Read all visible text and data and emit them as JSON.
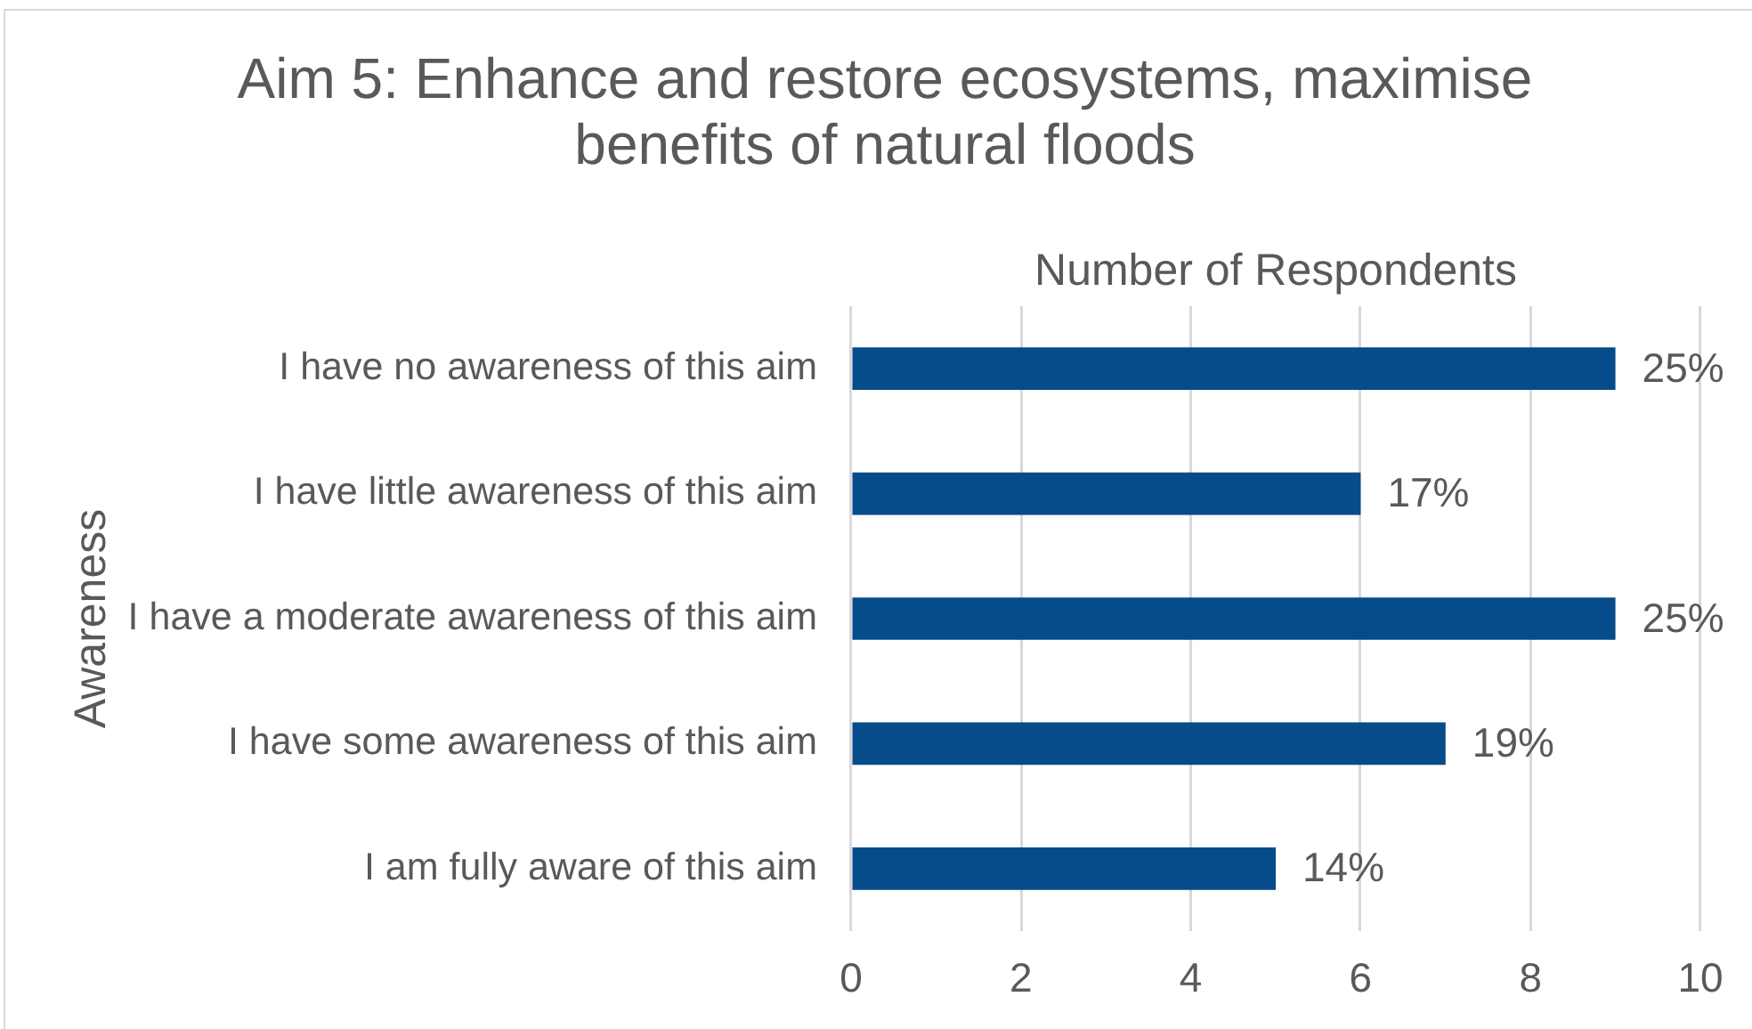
{
  "chart_data": {
    "type": "bar",
    "orientation": "horizontal",
    "title": "Aim 5: Enhance and restore ecosystems, maximise benefits of natural floods",
    "xlabel": "Number of Respondents",
    "ylabel": "Awareness",
    "categories": [
      "I have no awareness of this aim",
      "I have little awareness of this aim",
      "I have a moderate awareness of this aim",
      "I have some awareness of this aim",
      "I am fully aware of this aim"
    ],
    "values": [
      9,
      6,
      9,
      7,
      5
    ],
    "color": "#064b8a",
    "annotations": [
      {
        "text": "25%",
        "x": 9,
        "y": "I have no awareness of this aim"
      },
      {
        "text": "17%",
        "x": 6,
        "y": "I have little awareness of this aim"
      },
      {
        "text": "25%",
        "x": 9,
        "y": "I have a moderate awareness of this aim"
      },
      {
        "text": "19%",
        "x": 7,
        "y": "I have some awareness of this aim"
      },
      {
        "text": "14%",
        "x": 5,
        "y": "I am fully aware of this aim"
      }
    ],
    "xlim": [
      0,
      10
    ],
    "xticks": [
      0,
      2,
      4,
      6,
      8,
      10
    ],
    "grid": "x"
  }
}
